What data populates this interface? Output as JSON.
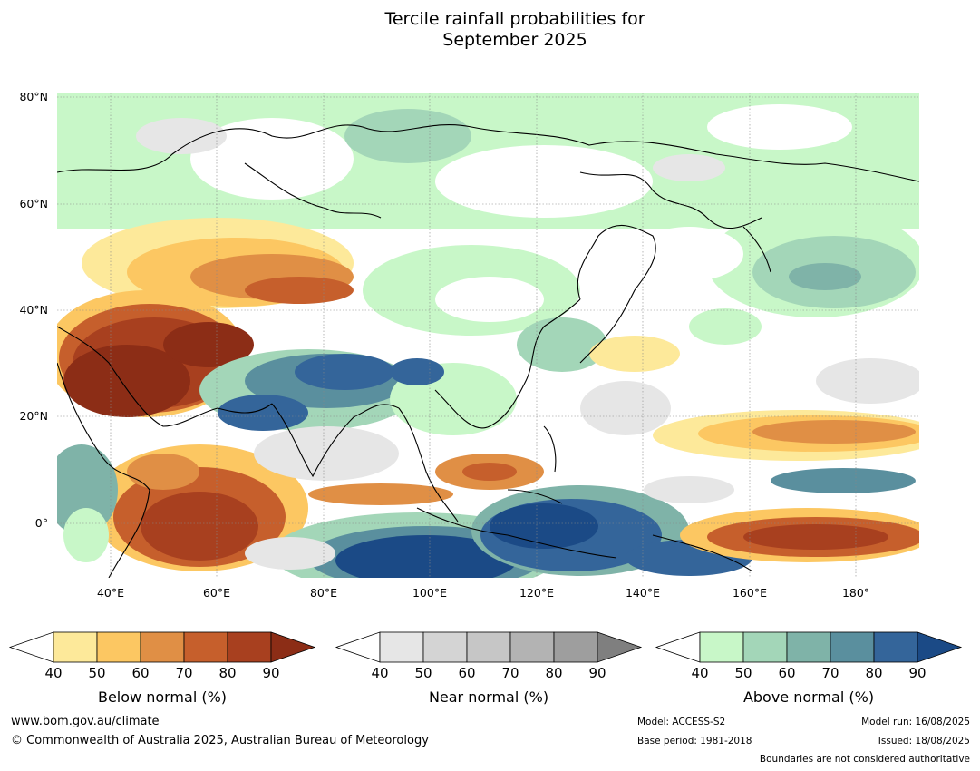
{
  "title_line1": "Tercile rainfall probabilities for",
  "title_line2": "September 2025",
  "map": {
    "lat_labels": [
      "80°N",
      "60°N",
      "40°N",
      "20°N",
      "0°"
    ],
    "lon_labels": [
      "40°E",
      "60°E",
      "80°E",
      "100°E",
      "120°E",
      "140°E",
      "160°E",
      "180°"
    ]
  },
  "colorbars": [
    {
      "name": "below",
      "title": "Below normal (%)",
      "ticks": [
        "40",
        "50",
        "60",
        "70",
        "80",
        "90"
      ],
      "colors": [
        "#ffffff",
        "#fde99a",
        "#fcc762",
        "#e08f45",
        "#c65f2c",
        "#a8401f",
        "#8c2d16"
      ]
    },
    {
      "name": "near",
      "title": "Near normal (%)",
      "ticks": [
        "40",
        "50",
        "60",
        "70",
        "80",
        "90"
      ],
      "colors": [
        "#ffffff",
        "#e6e6e6",
        "#d4d4d4",
        "#c6c6c6",
        "#b3b3b3",
        "#9e9e9e",
        "#7f7f7f"
      ]
    },
    {
      "name": "above",
      "title": "Above normal (%)",
      "ticks": [
        "40",
        "50",
        "60",
        "70",
        "80",
        "90"
      ],
      "colors": [
        "#ffffff",
        "#c8f7c8",
        "#a3d6b8",
        "#7fb3a8",
        "#5a8f9e",
        "#34659a",
        "#1b4a86"
      ]
    }
  ],
  "footer": {
    "website": "www.bom.gov.au/climate",
    "copyright": "© Commonwealth of Australia 2025, Australian Bureau of Meteorology",
    "model": "Model: ACCESS-S2",
    "base_period": "Base period: 1981-2018",
    "model_run": "Model run: 16/08/2025",
    "issued": "Issued: 18/08/2025",
    "disclaimer": "Boundaries are not considered authoritative"
  }
}
